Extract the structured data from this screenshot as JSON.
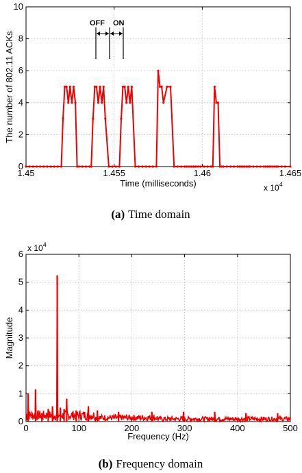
{
  "chart_data": [
    {
      "type": "line",
      "caption_key": "(a)",
      "caption_text": "Time domain",
      "xlabel": "Time (milliseconds)",
      "ylabel": "The number of 802.11 ACKs",
      "x_exponent_base": "x 10",
      "x_exponent_power": "4",
      "xlim": [
        1.45,
        1.465
      ],
      "ylim": [
        0,
        10
      ],
      "x_ticks": [
        "1.45",
        "1.455",
        "1.46",
        "1.465"
      ],
      "y_ticks": [
        "0",
        "2",
        "4",
        "6",
        "8",
        "10"
      ],
      "grid": true,
      "color": "#ee0000",
      "annotation_off": "OFF",
      "annotation_on": "ON",
      "series": [
        {
          "x": [
            1.45,
            1.4502,
            1.4504,
            1.4506,
            1.4508,
            1.451,
            1.4512,
            1.4514,
            1.4516,
            1.4518,
            1.452,
            1.4521,
            1.4522,
            1.4523,
            1.4524,
            1.4525,
            1.4526,
            1.4527,
            1.4528,
            1.4529,
            1.453,
            1.4532,
            1.4534,
            1.4536,
            1.4537,
            1.4538,
            1.4539,
            1.454,
            1.4541,
            1.4542,
            1.4543,
            1.4544,
            1.4545,
            1.4547,
            1.4549,
            1.4551,
            1.4553,
            1.4554,
            1.4555,
            1.4556,
            1.4557,
            1.4558,
            1.4559,
            1.456,
            1.4562,
            1.4564,
            1.4566,
            1.4568,
            1.457,
            1.4572,
            1.4574,
            1.4575,
            1.4576,
            1.4577,
            1.4578,
            1.458,
            1.4582,
            1.4584,
            1.4586,
            1.4588,
            1.459,
            1.4591,
            1.4592,
            1.4593,
            1.4594,
            1.4595,
            1.4596,
            1.4597,
            1.4598,
            1.4599,
            1.4601,
            1.4603,
            1.4605,
            1.4606,
            1.4607,
            1.4608,
            1.4609,
            1.461,
            1.4611,
            1.4612,
            1.4614,
            1.4616,
            1.4618,
            1.462,
            1.4621,
            1.4622,
            1.4623,
            1.4624,
            1.4625,
            1.4626,
            1.4627,
            1.4629,
            1.4631,
            1.4633,
            1.4635,
            1.4636,
            1.4637,
            1.4638,
            1.4639,
            1.464,
            1.4641,
            1.4642,
            1.4643,
            1.4645,
            1.4647,
            1.465
          ],
          "y": [
            0,
            0,
            0,
            0,
            0,
            0,
            0,
            0,
            0,
            0,
            0,
            3,
            5,
            5,
            4,
            5,
            4,
            5,
            4,
            0,
            0,
            0,
            0,
            0,
            0,
            3,
            5,
            5,
            4,
            5,
            4,
            5,
            3,
            0,
            0,
            0,
            0,
            3,
            5,
            5,
            4,
            5,
            4,
            5,
            0,
            0,
            0,
            0,
            0,
            0,
            0,
            6,
            5,
            5,
            4,
            5,
            5,
            0,
            0,
            0,
            0,
            0,
            0,
            0,
            0,
            0,
            0,
            0,
            0,
            0,
            0,
            0,
            0,
            0,
            5,
            4,
            4,
            0,
            0,
            0,
            0,
            0,
            0,
            0,
            0,
            0,
            0,
            0,
            0,
            0,
            0,
            0,
            0,
            0,
            0,
            0,
            0,
            0,
            0,
            0,
            0,
            0,
            0,
            0,
            0,
            0
          ]
        }
      ]
    },
    {
      "type": "line",
      "caption_key": "(b)",
      "caption_text": "Frequency domain",
      "xlabel": "Frequency (Hz)",
      "ylabel": "Magnitude",
      "y_exponent_base": "x 10",
      "y_exponent_power": "4",
      "xlim": [
        0,
        500
      ],
      "ylim": [
        0,
        6
      ],
      "x_ticks": [
        "0",
        "100",
        "200",
        "300",
        "400",
        "500"
      ],
      "y_ticks": [
        "0",
        "1",
        "2",
        "3",
        "4",
        "5",
        "6"
      ],
      "grid": true,
      "color": "#ee0000",
      "peaks": [
        {
          "x": 4,
          "y": 1.0
        },
        {
          "x": 18,
          "y": 1.15
        },
        {
          "x": 30,
          "y": 0.3
        },
        {
          "x": 42,
          "y": 0.45
        },
        {
          "x": 50,
          "y": 0.55
        },
        {
          "x": 59,
          "y": 5.25
        },
        {
          "x": 65,
          "y": 0.5
        },
        {
          "x": 72,
          "y": 0.45
        },
        {
          "x": 77,
          "y": 0.82
        },
        {
          "x": 95,
          "y": 0.4
        },
        {
          "x": 118,
          "y": 0.55
        },
        {
          "x": 135,
          "y": 0.4
        },
        {
          "x": 175,
          "y": 0.35
        },
        {
          "x": 238,
          "y": 0.35
        },
        {
          "x": 298,
          "y": 0.35
        },
        {
          "x": 357,
          "y": 0.35
        },
        {
          "x": 416,
          "y": 0.3
        },
        {
          "x": 476,
          "y": 0.3
        }
      ]
    }
  ]
}
